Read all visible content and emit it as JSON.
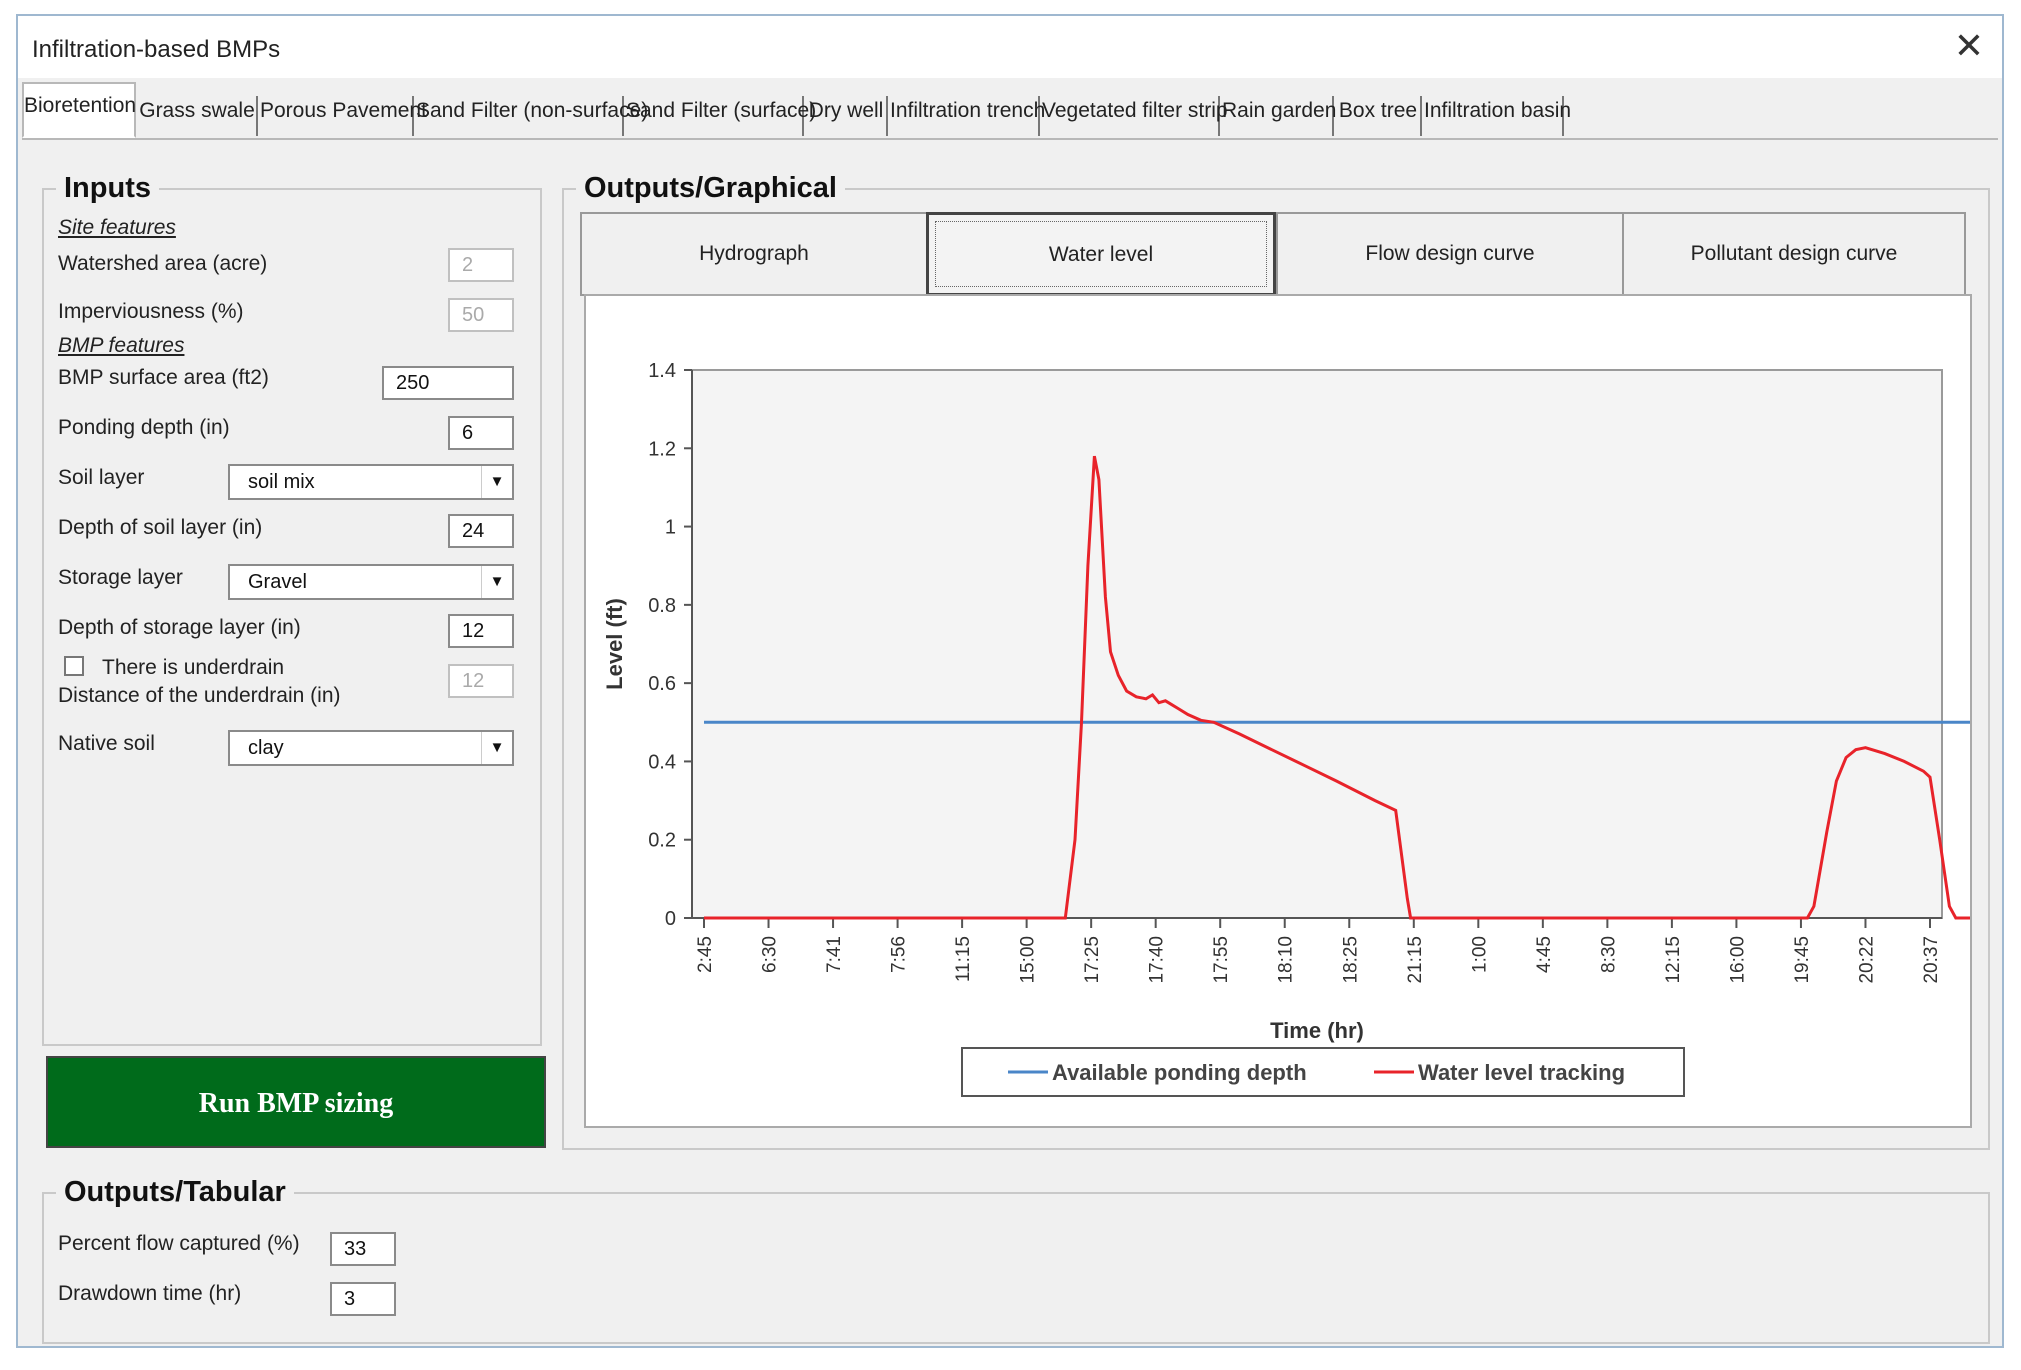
{
  "window": {
    "title": "Infiltration-based BMPs",
    "close_icon": "close-icon"
  },
  "tabs": [
    {
      "label": "Bioretention",
      "active": true
    },
    {
      "label": "Grass swale"
    },
    {
      "label": "Porous Pavement"
    },
    {
      "label": "Sand Filter (non-surface)"
    },
    {
      "label": "Sand Filter (surface)"
    },
    {
      "label": "Dry well"
    },
    {
      "label": "Infiltration trench"
    },
    {
      "label": "Vegetated filter strip"
    },
    {
      "label": "Rain garden"
    },
    {
      "label": "Box tree"
    },
    {
      "label": "Infiltration basin"
    }
  ],
  "inputs": {
    "title": "Inputs",
    "site_features": "Site features",
    "watershed_area": {
      "label": "Watershed area (acre)",
      "value": "2"
    },
    "imperviousness": {
      "label": "Imperviousness (%)",
      "value": "50"
    },
    "bmp_features": "BMP features",
    "bmp_surface_area": {
      "label": "BMP surface area (ft2)",
      "value": "250"
    },
    "ponding_depth": {
      "label": "Ponding depth (in)",
      "value": "6"
    },
    "soil_layer": {
      "label": "Soil layer",
      "value": "soil mix"
    },
    "depth_soil_layer": {
      "label": "Depth of soil layer (in)",
      "value": "24"
    },
    "storage_layer": {
      "label": "Storage layer",
      "value": "Gravel"
    },
    "depth_storage_layer": {
      "label": "Depth of storage layer (in)",
      "value": "12"
    },
    "underdrain": {
      "label": "There is underdrain",
      "checked": false
    },
    "underdrain_distance": {
      "label": "Distance of the underdrain (in)",
      "value": "12"
    },
    "native_soil": {
      "label": "Native soil",
      "value": "clay"
    }
  },
  "run_button": "Run BMP sizing",
  "graphical": {
    "title": "Outputs/Graphical",
    "buttons": [
      "Hydrograph",
      "Water level",
      "Flow design curve",
      "Pollutant design curve"
    ],
    "active": 1
  },
  "tabular": {
    "title": "Outputs/Tabular",
    "percent_flow": {
      "label": "Percent flow captured (%)",
      "value": "33"
    },
    "drawdown": {
      "label": "Drawdown time (hr)",
      "value": "3"
    }
  },
  "chart_data": {
    "type": "line",
    "xlabel": "Time (hr)",
    "ylabel": "Level (ft)",
    "ylim": [
      0,
      1.4
    ],
    "yticks": [
      "0",
      "0.2",
      "0.4",
      "0.6",
      "0.8",
      "1",
      "1.2",
      "1.4"
    ],
    "categories": [
      "2:45",
      "6:30",
      "7:41",
      "7:56",
      "11:15",
      "15:00",
      "17:25",
      "17:40",
      "17:55",
      "18:10",
      "18:25",
      "21:15",
      "1:00",
      "4:45",
      "8:30",
      "12:15",
      "16:00",
      "19:45",
      "20:22",
      "20:37"
    ],
    "legend_position": "bottom",
    "grid": false,
    "series": [
      {
        "name": "Available ponding depth",
        "color": "#4a86c8",
        "points": [
          [
            0,
            0.5
          ],
          [
            19.9,
            0.5
          ]
        ]
      },
      {
        "name": "Water level tracking",
        "color": "#e8232a",
        "points": [
          [
            0,
            0
          ],
          [
            5.6,
            0
          ],
          [
            5.75,
            0.2
          ],
          [
            5.85,
            0.5
          ],
          [
            5.95,
            0.9
          ],
          [
            6.05,
            1.18
          ],
          [
            6.12,
            1.12
          ],
          [
            6.22,
            0.82
          ],
          [
            6.3,
            0.68
          ],
          [
            6.42,
            0.62
          ],
          [
            6.55,
            0.58
          ],
          [
            6.7,
            0.565
          ],
          [
            6.85,
            0.56
          ],
          [
            6.95,
            0.57
          ],
          [
            7.05,
            0.55
          ],
          [
            7.15,
            0.555
          ],
          [
            7.25,
            0.545
          ],
          [
            7.35,
            0.535
          ],
          [
            7.5,
            0.52
          ],
          [
            7.7,
            0.505
          ],
          [
            7.9,
            0.5
          ],
          [
            8.3,
            0.47
          ],
          [
            8.8,
            0.43
          ],
          [
            9.3,
            0.39
          ],
          [
            9.8,
            0.35
          ],
          [
            10.4,
            0.3
          ],
          [
            10.72,
            0.275
          ],
          [
            10.9,
            0.05
          ],
          [
            10.95,
            0
          ],
          [
            17.1,
            0
          ],
          [
            17.2,
            0.03
          ],
          [
            17.4,
            0.22
          ],
          [
            17.55,
            0.35
          ],
          [
            17.7,
            0.41
          ],
          [
            17.85,
            0.43
          ],
          [
            18.0,
            0.435
          ],
          [
            18.3,
            0.42
          ],
          [
            18.6,
            0.4
          ],
          [
            18.9,
            0.375
          ],
          [
            19.0,
            0.36
          ],
          [
            19.15,
            0.2
          ],
          [
            19.3,
            0.03
          ],
          [
            19.4,
            0
          ],
          [
            19.9,
            0
          ]
        ]
      }
    ]
  }
}
